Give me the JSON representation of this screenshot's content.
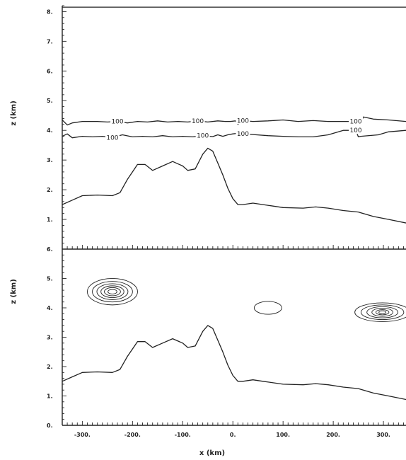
{
  "chart_data": [
    {
      "type": "line",
      "panel": "top",
      "ylabel": "z (km)",
      "ylim": [
        0,
        8.2
      ],
      "xlim": [
        -340,
        345
      ],
      "y_ticks": [
        "1.",
        "2.",
        "3.",
        "4.",
        "5.",
        "6.",
        "7.",
        "8."
      ],
      "series": [
        {
          "x": [
            -340,
            -320,
            -300,
            -270,
            -240,
            -225,
            -210,
            -190,
            -175,
            -160,
            -140,
            -120,
            -100,
            -90,
            -75,
            -60,
            -50,
            -40,
            -30,
            -20,
            -10,
            0,
            10,
            20,
            40,
            60,
            100,
            140,
            165,
            190,
            220,
            250,
            280,
            310,
            345
          ],
          "y": [
            1.5,
            1.65,
            1.8,
            1.82,
            1.8,
            1.9,
            2.35,
            2.85,
            2.85,
            2.65,
            2.8,
            2.95,
            2.8,
            2.65,
            2.7,
            3.2,
            3.4,
            3.3,
            2.9,
            2.5,
            2.05,
            1.7,
            1.5,
            1.5,
            1.55,
            1.5,
            1.4,
            1.38,
            1.42,
            1.38,
            1.3,
            1.25,
            1.1,
            1.0,
            0.88
          ]
        },
        {
          "x": [
            -340,
            -330,
            -320,
            -300,
            -280,
            -260,
            -240,
            -220,
            -200,
            -180,
            -160,
            -140,
            -120,
            -100,
            -80,
            -60,
            -40,
            -30,
            -20,
            -10,
            0,
            10,
            20,
            40,
            70,
            100,
            130,
            160,
            190,
            220,
            245,
            250,
            255,
            290,
            310,
            345
          ],
          "y": [
            3.8,
            3.88,
            3.75,
            3.8,
            3.78,
            3.8,
            3.76,
            3.85,
            3.78,
            3.8,
            3.78,
            3.82,
            3.78,
            3.8,
            3.78,
            3.82,
            3.79,
            3.85,
            3.8,
            3.85,
            3.88,
            3.9,
            3.88,
            3.86,
            3.82,
            3.8,
            3.78,
            3.78,
            3.85,
            4.0,
            4.0,
            3.78,
            3.8,
            3.85,
            3.95,
            4.0
          ],
          "label": "100"
        },
        {
          "x": [
            -340,
            -330,
            -320,
            -300,
            -270,
            -250,
            -230,
            -210,
            -190,
            -170,
            -150,
            -130,
            -110,
            -90,
            -70,
            -50,
            -30,
            -15,
            -5,
            5,
            10,
            20,
            40,
            70,
            100,
            130,
            160,
            190,
            220,
            245,
            255,
            260,
            280,
            310,
            345
          ],
          "y": [
            4.35,
            4.18,
            4.25,
            4.3,
            4.3,
            4.28,
            4.3,
            4.25,
            4.3,
            4.28,
            4.32,
            4.28,
            4.3,
            4.28,
            4.32,
            4.28,
            4.32,
            4.3,
            4.3,
            4.32,
            4.2,
            4.33,
            4.3,
            4.32,
            4.35,
            4.3,
            4.33,
            4.3,
            4.3,
            4.3,
            4.25,
            4.45,
            4.38,
            4.35,
            4.3
          ],
          "label": "100"
        },
        {
          "x": [
            -340,
            345
          ],
          "y": [
            8.15,
            8.15
          ]
        }
      ]
    },
    {
      "type": "line",
      "panel": "bottom",
      "ylabel": "z (km)",
      "xlabel": "x (km)",
      "ylim": [
        0,
        6
      ],
      "xlim": [
        -340,
        345
      ],
      "x_ticks": [
        "-300.",
        "-200.",
        "-100.",
        "0.",
        "100.",
        "200.",
        "300."
      ],
      "y_ticks": [
        "0.",
        "1.",
        "2.",
        "3.",
        "4.",
        "5.",
        "6."
      ],
      "series": [
        {
          "x": [
            -340,
            -320,
            -300,
            -270,
            -240,
            -225,
            -210,
            -190,
            -175,
            -160,
            -140,
            -120,
            -100,
            -90,
            -75,
            -60,
            -50,
            -40,
            -30,
            -20,
            -10,
            0,
            10,
            20,
            40,
            60,
            100,
            140,
            165,
            190,
            220,
            250,
            280,
            310,
            345
          ],
          "y": [
            1.5,
            1.65,
            1.8,
            1.82,
            1.8,
            1.9,
            2.35,
            2.85,
            2.85,
            2.65,
            2.8,
            2.95,
            2.8,
            2.65,
            2.7,
            3.2,
            3.4,
            3.3,
            2.9,
            2.5,
            2.05,
            1.7,
            1.5,
            1.5,
            1.55,
            1.5,
            1.4,
            1.38,
            1.42,
            1.38,
            1.3,
            1.25,
            1.1,
            1.0,
            0.88
          ]
        }
      ],
      "contours": [
        {
          "cx": -240,
          "cy": 4.55,
          "rings": [
            [
              100,
              0.45
            ],
            [
              80,
              0.35
            ],
            [
              62,
              0.27
            ],
            [
              46,
              0.2
            ],
            [
              32,
              0.14
            ],
            [
              18,
              0.08
            ]
          ]
        },
        {
          "cx": 298,
          "cy": 3.85,
          "rings": [
            [
              110,
              0.32
            ],
            [
              85,
              0.25
            ],
            [
              62,
              0.19
            ],
            [
              42,
              0.14
            ],
            [
              26,
              0.09
            ],
            [
              14,
              0.05
            ]
          ]
        },
        {
          "cx": 70,
          "cy": 4.0,
          "rings": [
            [
              55,
              0.22
            ]
          ]
        }
      ]
    }
  ]
}
